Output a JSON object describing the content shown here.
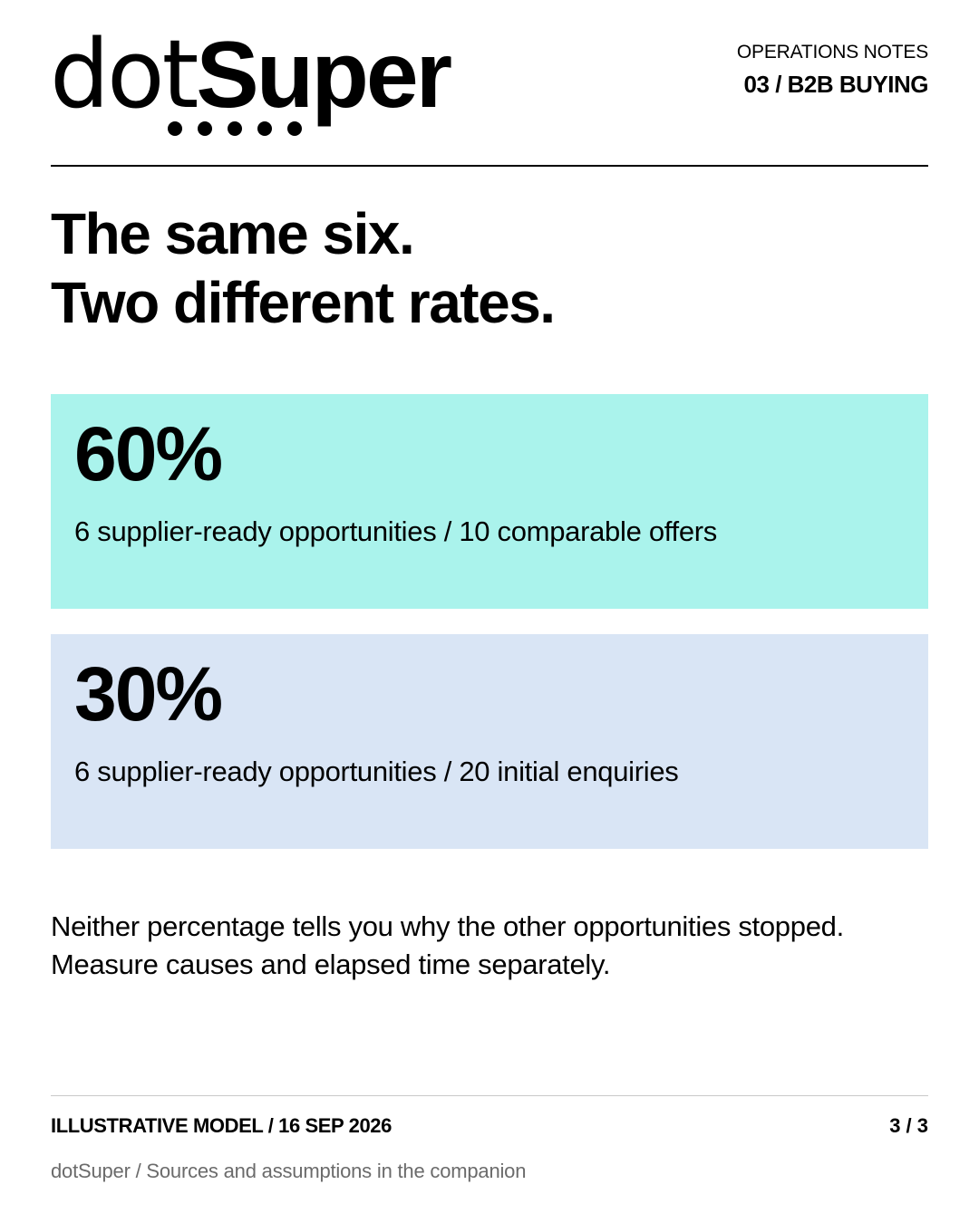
{
  "brand": {
    "logo_light": "dot",
    "logo_bold": "Super",
    "dot_count": 5
  },
  "header": {
    "series": "OPERATIONS NOTES",
    "issue": "03 / B2B BUYING"
  },
  "headline": {
    "line1": "The same six.",
    "line2": "Two different rates."
  },
  "cards": [
    {
      "percent": "60%",
      "description": "6 supplier-ready opportunities / 10 comparable offers",
      "color": "#aaf3ec"
    },
    {
      "percent": "30%",
      "description": "6 supplier-ready opportunities / 20 initial enquiries",
      "color": "#d9e5f5"
    }
  ],
  "note": {
    "line1": "Neither percentage tells you why the other opportunities stopped.",
    "line2": "Measure causes and elapsed time separately."
  },
  "footer": {
    "label": "ILLUSTRATIVE MODEL / 16 SEP 2026",
    "page": "3 / 3",
    "source": "dotSuper / Sources and assumptions in the companion"
  }
}
